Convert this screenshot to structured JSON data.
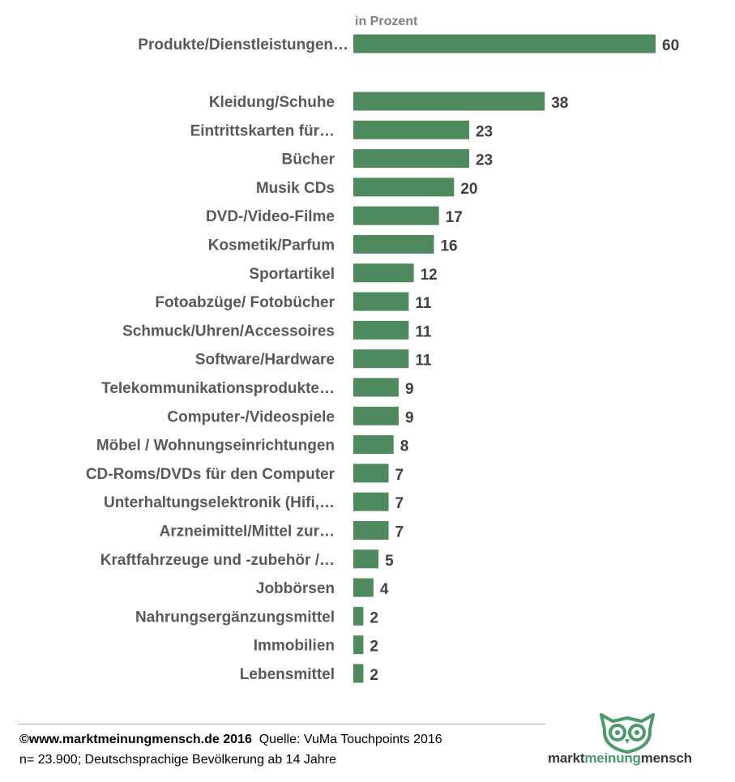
{
  "chart_data": {
    "type": "bar",
    "orientation": "horizontal",
    "unit_label": "in Prozent",
    "categories": [
      "Produkte/Dienstleistungen…",
      "Kleidung/Schuhe",
      "Eintrittskarten für…",
      "Bücher",
      "Musik CDs",
      "DVD-/Video-Filme",
      "Kosmetik/Parfum",
      "Sportartikel",
      "Fotoabzüge/ Fotobücher",
      "Schmuck/Uhren/Accessoires",
      "Software/Hardware",
      "Telekommunikationsprodukte…",
      "Computer-/Videospiele",
      "Möbel / Wohnungseinrichtungen",
      "CD-Roms/DVDs für den Computer",
      "Unterhaltungselektronik (Hifi,…",
      "Arzneimittel/Mittel zur…",
      "Kraftfahrzeuge und -zubehör /…",
      "Jobbörsen",
      "Nahrungsergänzungsmittel",
      "Immobilien",
      "Lebensmittel"
    ],
    "values": [
      60,
      38,
      23,
      23,
      20,
      17,
      16,
      12,
      11,
      11,
      11,
      9,
      9,
      8,
      7,
      7,
      7,
      5,
      4,
      2,
      2,
      2
    ],
    "bar_color": "#4e8a5e",
    "grid": false,
    "legend": "none"
  },
  "footer": {
    "source_bold": "©www.marktmeinungmensch.de 2016",
    "source_rest": "Quelle: VuMa Touchpoints 2016",
    "sample": "n= 23.900; Deutschsprachige Bevölkerung ab 14 Jahre"
  },
  "logo": {
    "part1": "markt",
    "part2": "meinung",
    "part3": "mensch",
    "accent_color": "#4a9a6a"
  }
}
